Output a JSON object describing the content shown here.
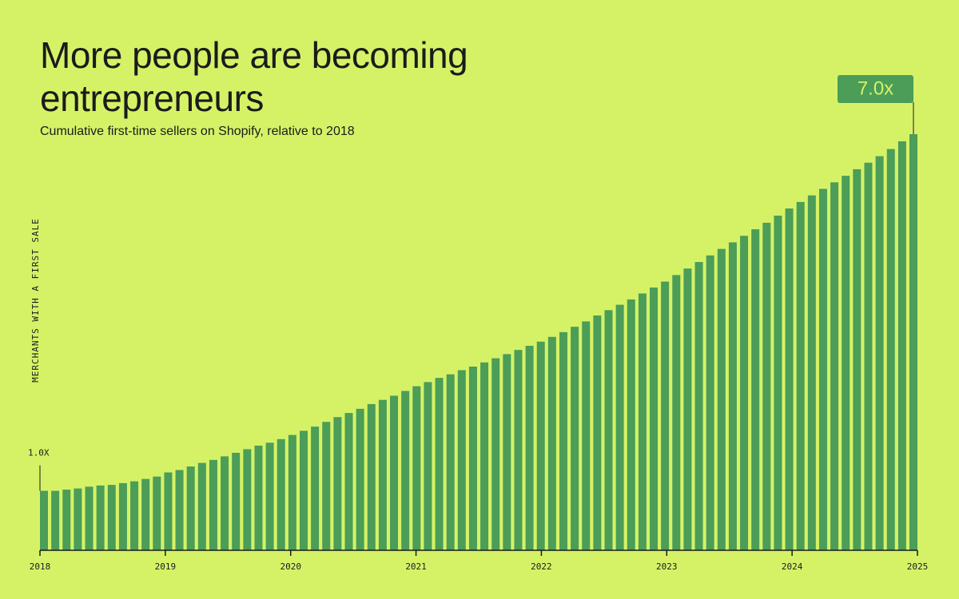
{
  "chart_data": {
    "type": "bar",
    "title": "More people are becoming entrepreneurs",
    "subtitle": "Cumulative first-time sellers on Shopify, relative to 2018",
    "y_label": "MERCHANTS WITH A FIRST SALE",
    "color": "#4b9d58",
    "categories": [
      null,
      null,
      null,
      null,
      null,
      null,
      null,
      null,
      null,
      null,
      null,
      null,
      null,
      null,
      null,
      null,
      null,
      null,
      null,
      null,
      null,
      null,
      null,
      null,
      null,
      null,
      null,
      null,
      null,
      null,
      null,
      null,
      null,
      null,
      null,
      null,
      null,
      null,
      null,
      null,
      null,
      null,
      null,
      null,
      null,
      null,
      null,
      null,
      null,
      null,
      null,
      null,
      null,
      null,
      null,
      null,
      null,
      null,
      null,
      null,
      null,
      null,
      null,
      null,
      null,
      null,
      null,
      null,
      null,
      null,
      null,
      null,
      null,
      null,
      null,
      null,
      null,
      null
    ],
    "values": [
      1.0,
      1.0,
      1.02,
      1.04,
      1.07,
      1.09,
      1.1,
      1.13,
      1.16,
      1.2,
      1.24,
      1.31,
      1.35,
      1.41,
      1.47,
      1.52,
      1.58,
      1.64,
      1.7,
      1.76,
      1.81,
      1.87,
      1.94,
      2.01,
      2.08,
      2.16,
      2.24,
      2.31,
      2.38,
      2.46,
      2.53,
      2.6,
      2.68,
      2.76,
      2.83,
      2.9,
      2.96,
      3.03,
      3.09,
      3.16,
      3.23,
      3.3,
      3.37,
      3.44,
      3.51,
      3.59,
      3.67,
      3.76,
      3.85,
      3.95,
      4.04,
      4.13,
      4.22,
      4.32,
      4.42,
      4.52,
      4.63,
      4.74,
      4.85,
      4.96,
      5.07,
      5.18,
      5.29,
      5.4,
      5.51,
      5.63,
      5.75,
      5.86,
      5.97,
      6.08,
      6.19,
      6.3,
      6.41,
      6.52,
      6.63,
      6.75,
      6.88,
      7.0
    ],
    "value_labels": [
      "1.0X",
      null,
      null,
      null,
      null,
      null,
      null,
      null,
      null,
      null,
      null,
      null,
      null,
      null,
      null,
      null,
      null,
      null,
      null,
      null,
      null,
      null,
      null,
      null,
      null,
      null,
      null,
      null,
      null,
      null,
      null,
      null,
      null,
      null,
      null,
      null,
      null,
      null,
      null,
      null,
      null,
      null,
      null,
      null,
      null,
      null,
      null,
      null,
      null,
      null,
      null,
      null,
      null,
      null,
      null,
      null,
      null,
      null,
      null,
      null,
      null,
      null,
      null,
      null,
      null,
      null,
      null,
      null,
      null,
      null,
      null,
      null,
      null,
      null,
      null,
      null,
      null,
      "7.0x"
    ],
    "ylim": [
      0,
      7
    ],
    "xlim": [
      2018,
      2025
    ],
    "xticks": [
      2018,
      2019,
      2020,
      2021,
      2022,
      2023,
      2024,
      2025
    ]
  }
}
